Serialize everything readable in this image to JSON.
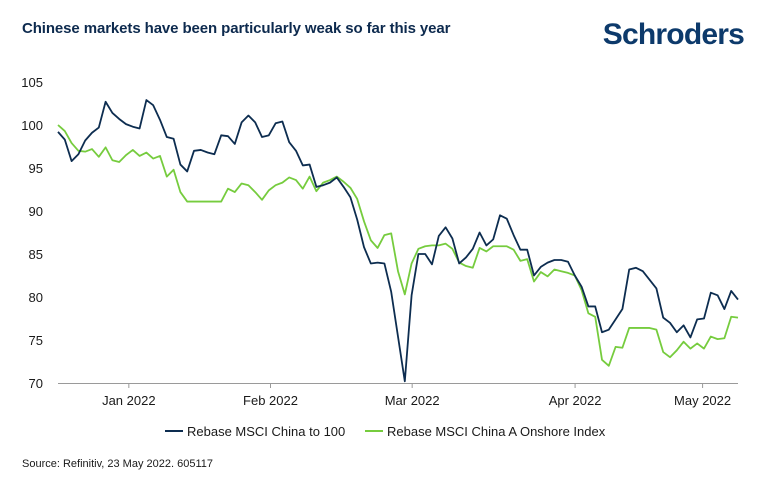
{
  "title": "Chinese markets have been particularly weak so far this year",
  "logo": "Schroders",
  "source": "Source: Refinitiv, 23 May 2022. 605117",
  "colors": {
    "series1": "#0d2d50",
    "series2": "#76cc3e"
  },
  "chart_data": {
    "type": "line",
    "ylim": [
      70,
      105
    ],
    "yticks": [
      70,
      75,
      80,
      85,
      90,
      95,
      100,
      105
    ],
    "xlim": [
      0,
      96
    ],
    "xticks": [
      {
        "at": 10,
        "label": "Jan 2022"
      },
      {
        "at": 30,
        "label": "Feb 2022"
      },
      {
        "at": 50,
        "label": "Mar 2022"
      },
      {
        "at": 73,
        "label": "Apr 2022"
      },
      {
        "at": 91,
        "label": "May 2022"
      }
    ],
    "legend_position": "bottom",
    "series": [
      {
        "name": "Rebase MSCI China to 100",
        "values": [
          [
            0,
            99.2
          ],
          [
            1,
            98.3
          ],
          [
            2,
            95.8
          ],
          [
            3,
            96.6
          ],
          [
            4,
            98.2
          ],
          [
            5,
            99.1
          ],
          [
            6,
            99.7
          ],
          [
            7,
            102.7
          ],
          [
            8,
            101.4
          ],
          [
            9,
            100.7
          ],
          [
            10,
            100.1
          ],
          [
            11,
            99.8
          ],
          [
            12,
            99.6
          ],
          [
            13,
            102.9
          ],
          [
            14,
            102.3
          ],
          [
            15,
            100.6
          ],
          [
            16,
            98.6
          ],
          [
            17,
            98.4
          ],
          [
            18,
            95.4
          ],
          [
            19,
            94.6
          ],
          [
            20,
            97.0
          ],
          [
            21,
            97.1
          ],
          [
            22,
            96.8
          ],
          [
            23,
            96.6
          ],
          [
            24,
            98.8
          ],
          [
            25,
            98.7
          ],
          [
            26,
            97.8
          ],
          [
            27,
            100.3
          ],
          [
            28,
            101.1
          ],
          [
            29,
            100.3
          ],
          [
            30,
            98.6
          ],
          [
            31,
            98.8
          ],
          [
            32,
            100.2
          ],
          [
            33,
            100.4
          ],
          [
            34,
            98.0
          ],
          [
            35,
            97.0
          ],
          [
            36,
            95.3
          ],
          [
            37,
            95.4
          ],
          [
            38,
            92.8
          ],
          [
            39,
            93.0
          ],
          [
            40,
            93.3
          ],
          [
            41,
            93.9
          ],
          [
            42,
            92.8
          ],
          [
            43,
            91.6
          ],
          [
            44,
            89.0
          ],
          [
            45,
            85.8
          ],
          [
            46,
            83.9
          ],
          [
            47,
            84.0
          ],
          [
            48,
            83.9
          ],
          [
            49,
            80.6
          ],
          [
            51,
            70.2
          ],
          [
            52,
            80.2
          ],
          [
            53,
            85.0
          ],
          [
            54,
            85.0
          ],
          [
            55,
            83.8
          ],
          [
            56,
            87.1
          ],
          [
            57,
            88.1
          ],
          [
            58,
            86.8
          ],
          [
            59,
            83.9
          ],
          [
            60,
            84.6
          ],
          [
            61,
            85.6
          ],
          [
            62,
            87.5
          ],
          [
            63,
            86.0
          ],
          [
            64,
            86.7
          ],
          [
            65,
            89.5
          ],
          [
            66,
            89.1
          ],
          [
            67,
            87.2
          ],
          [
            68,
            85.5
          ],
          [
            69,
            85.5
          ],
          [
            70,
            82.5
          ],
          [
            71,
            83.5
          ],
          [
            72,
            84.0
          ],
          [
            73,
            84.3
          ],
          [
            74,
            84.3
          ],
          [
            75,
            84.1
          ],
          [
            76,
            82.5
          ],
          [
            77,
            81.2
          ],
          [
            78,
            78.9
          ],
          [
            79,
            78.9
          ],
          [
            80,
            75.9
          ],
          [
            81,
            76.2
          ],
          [
            82,
            77.4
          ],
          [
            83,
            78.6
          ],
          [
            84,
            83.2
          ],
          [
            85,
            83.4
          ],
          [
            86,
            83.0
          ],
          [
            87,
            82.0
          ],
          [
            88,
            81.0
          ],
          [
            89,
            77.6
          ],
          [
            90,
            77.0
          ],
          [
            91,
            75.9
          ],
          [
            92,
            76.7
          ],
          [
            93,
            75.3
          ],
          [
            94,
            77.4
          ],
          [
            95,
            77.5
          ],
          [
            96,
            80.5
          ],
          [
            97,
            80.2
          ],
          [
            98,
            78.6
          ],
          [
            99,
            80.7
          ],
          [
            100,
            79.7
          ]
        ]
      },
      {
        "name": "Rebase MSCI China A Onshore Index",
        "values": [
          [
            0,
            100.0
          ],
          [
            1,
            99.3
          ],
          [
            2,
            97.9
          ],
          [
            3,
            97.0
          ],
          [
            4,
            96.9
          ],
          [
            5,
            97.2
          ],
          [
            6,
            96.3
          ],
          [
            7,
            97.4
          ],
          [
            8,
            95.9
          ],
          [
            9,
            95.7
          ],
          [
            10,
            96.5
          ],
          [
            11,
            97.1
          ],
          [
            12,
            96.4
          ],
          [
            13,
            96.8
          ],
          [
            14,
            96.1
          ],
          [
            15,
            96.4
          ],
          [
            16,
            94.0
          ],
          [
            17,
            94.8
          ],
          [
            18,
            92.2
          ],
          [
            19,
            91.1
          ],
          [
            20,
            91.1
          ],
          [
            21,
            91.1
          ],
          [
            22,
            91.1
          ],
          [
            23,
            91.1
          ],
          [
            24,
            91.1
          ],
          [
            25,
            92.6
          ],
          [
            26,
            92.2
          ],
          [
            27,
            93.2
          ],
          [
            28,
            93.0
          ],
          [
            29,
            92.2
          ],
          [
            30,
            91.3
          ],
          [
            31,
            92.4
          ],
          [
            32,
            93.0
          ],
          [
            33,
            93.3
          ],
          [
            34,
            93.9
          ],
          [
            35,
            93.6
          ],
          [
            36,
            92.6
          ],
          [
            37,
            94.0
          ],
          [
            38,
            92.3
          ],
          [
            39,
            93.3
          ],
          [
            40,
            93.6
          ],
          [
            41,
            94.0
          ],
          [
            42,
            93.4
          ],
          [
            43,
            92.7
          ],
          [
            44,
            91.4
          ],
          [
            45,
            88.8
          ],
          [
            46,
            86.6
          ],
          [
            47,
            85.7
          ],
          [
            48,
            87.2
          ],
          [
            49,
            87.4
          ],
          [
            50,
            83.0
          ],
          [
            51,
            80.3
          ],
          [
            52,
            83.9
          ],
          [
            53,
            85.6
          ],
          [
            54,
            85.9
          ],
          [
            55,
            86.0
          ],
          [
            56,
            86.0
          ],
          [
            57,
            86.2
          ],
          [
            58,
            85.6
          ],
          [
            59,
            84.0
          ],
          [
            60,
            83.6
          ],
          [
            61,
            83.4
          ],
          [
            62,
            85.7
          ],
          [
            63,
            85.3
          ],
          [
            64,
            85.9
          ],
          [
            65,
            85.9
          ],
          [
            66,
            85.9
          ],
          [
            67,
            85.5
          ],
          [
            68,
            84.2
          ],
          [
            69,
            84.4
          ],
          [
            70,
            81.8
          ],
          [
            71,
            82.9
          ],
          [
            72,
            82.4
          ],
          [
            73,
            83.2
          ],
          [
            74,
            83.0
          ],
          [
            75,
            82.8
          ],
          [
            76,
            82.5
          ],
          [
            77,
            80.8
          ],
          [
            78,
            78.1
          ],
          [
            79,
            77.7
          ],
          [
            80,
            72.7
          ],
          [
            81,
            72.0
          ],
          [
            82,
            74.2
          ],
          [
            83,
            74.1
          ],
          [
            84,
            76.4
          ],
          [
            85,
            76.4
          ],
          [
            86,
            76.4
          ],
          [
            87,
            76.4
          ],
          [
            88,
            76.2
          ],
          [
            89,
            73.6
          ],
          [
            90,
            73.0
          ],
          [
            91,
            73.8
          ],
          [
            92,
            74.8
          ],
          [
            93,
            74.0
          ],
          [
            94,
            74.6
          ],
          [
            95,
            74.0
          ],
          [
            96,
            75.4
          ],
          [
            97,
            75.1
          ],
          [
            98,
            75.2
          ],
          [
            99,
            77.7
          ],
          [
            100,
            77.6
          ]
        ]
      }
    ]
  }
}
